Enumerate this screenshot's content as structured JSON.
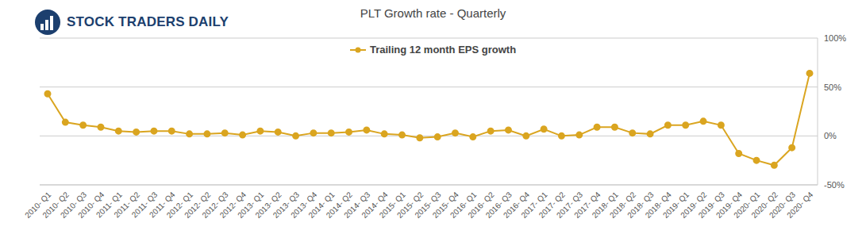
{
  "chart_data": {
    "type": "line",
    "title": "PLT Growth rate - Quarterly",
    "annotations": [
      "STOCK TRADERS DAILY"
    ],
    "categories": [
      "2010- Q1",
      "2010- Q2",
      "2010- Q3",
      "2010- Q4",
      "2011- Q1",
      "2011- Q2",
      "2011- Q3",
      "2011- Q4",
      "2012- Q1",
      "2012- Q2",
      "2012- Q3",
      "2012- Q4",
      "2013- Q1",
      "2013- Q2",
      "2013- Q3",
      "2013- Q4",
      "2014- Q1",
      "2014- Q2",
      "2014- Q3",
      "2014- Q4",
      "2015- Q1",
      "2015- Q2",
      "2015- Q3",
      "2015- Q4",
      "2016- Q1",
      "2016- Q2",
      "2016- Q3",
      "2016- Q4",
      "2017- Q1",
      "2017- Q2",
      "2017- Q3",
      "2017- Q4",
      "2018- Q1",
      "2018- Q2",
      "2018- Q3",
      "2018- Q4",
      "2019- Q1",
      "2019- Q2",
      "2019- Q3",
      "2019- Q4",
      "2020- Q1",
      "2020- Q2",
      "2020- Q3",
      "2020- Q4"
    ],
    "series": [
      {
        "name": "Trailing 12 month EPS growth",
        "color": "#daa520",
        "marker": "circle",
        "values": [
          43,
          14,
          11,
          9,
          5,
          4,
          5,
          5,
          2,
          2,
          3,
          1,
          5,
          4,
          0,
          3,
          3,
          4,
          6,
          2,
          1,
          -2,
          -1,
          3,
          -1,
          5,
          6,
          0,
          7,
          0,
          1,
          9,
          9,
          3,
          2,
          11,
          11,
          15,
          11,
          -18,
          -25,
          -30,
          -12,
          64
        ]
      }
    ],
    "ylim": [
      -50,
      100
    ],
    "yticks": [
      {
        "value": -50,
        "label": "-50%"
      },
      {
        "value": 0,
        "label": "0%"
      },
      {
        "value": 50,
        "label": "50%"
      },
      {
        "value": 100,
        "label": "100%"
      }
    ],
    "grid": true,
    "legend": "top"
  }
}
